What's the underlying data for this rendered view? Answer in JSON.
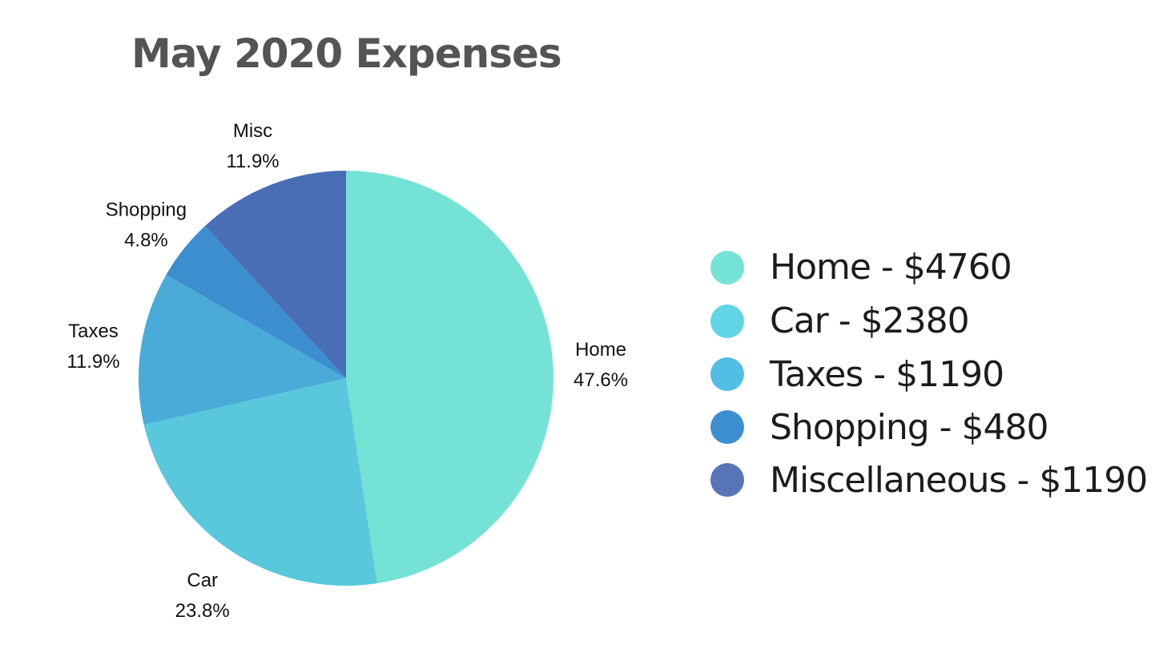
{
  "chart_data": {
    "type": "pie",
    "title": "May 2020 Expenses",
    "slices": [
      {
        "label": "Home",
        "percent_label": "47.6%",
        "value": 47.6,
        "color": "#74e2d4"
      },
      {
        "label": "Car",
        "percent_label": "23.8%",
        "value": 23.8,
        "color": "#5ac8dc"
      },
      {
        "label": "Taxes",
        "percent_label": "11.9%",
        "value": 11.9,
        "color": "#4aabd9"
      },
      {
        "label": "Shopping",
        "percent_label": "4.8%",
        "value": 4.8,
        "color": "#3c8ecf"
      },
      {
        "label": "Misc",
        "percent_label": "11.9%",
        "value": 11.9,
        "color": "#4a6eb6"
      }
    ],
    "start_angle": "12 o'clock",
    "direction": "clockwise",
    "legend_position": "right",
    "legend": [
      {
        "text": "Home - $4760",
        "color": "#74e2d4"
      },
      {
        "text": "Car - $2380",
        "color": "#5fd5e6"
      },
      {
        "text": "Taxes - $1190",
        "color": "#52bde5"
      },
      {
        "text": "Shopping - $480",
        "color": "#3b8fd1"
      },
      {
        "text": "Miscellaneous - $1190",
        "color": "#5674b6"
      }
    ]
  }
}
